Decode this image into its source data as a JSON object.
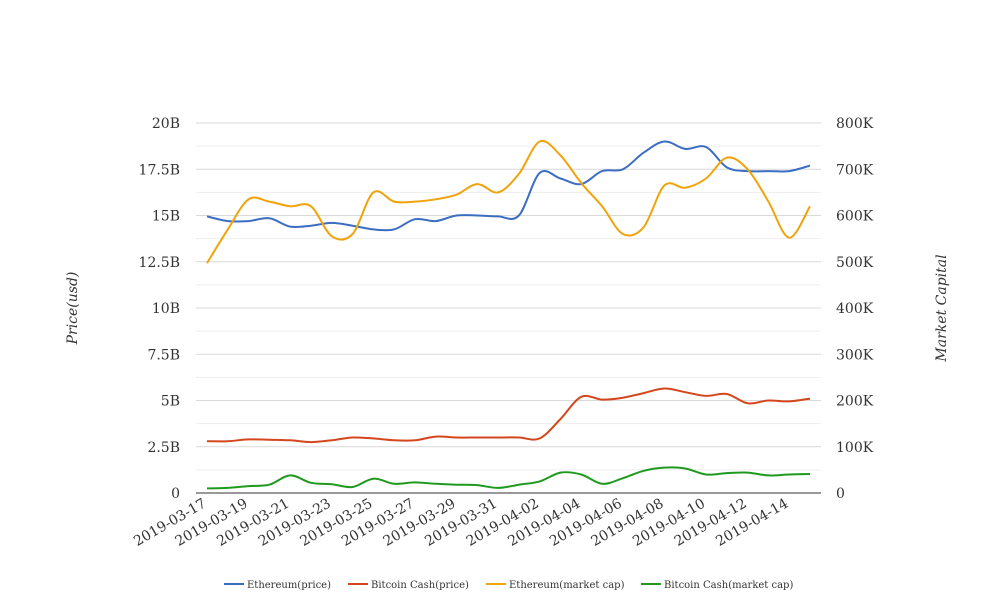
{
  "chart_data": {
    "type": "line",
    "title": "",
    "x": [
      "2019-03-17",
      "2019-03-18",
      "2019-03-19",
      "2019-03-20",
      "2019-03-21",
      "2019-03-22",
      "2019-03-23",
      "2019-03-24",
      "2019-03-25",
      "2019-03-26",
      "2019-03-27",
      "2019-03-28",
      "2019-03-29",
      "2019-03-30",
      "2019-03-31",
      "2019-04-01",
      "2019-04-02",
      "2019-04-03",
      "2019-04-04",
      "2019-04-05",
      "2019-04-06",
      "2019-04-07",
      "2019-04-08",
      "2019-04-09",
      "2019-04-10",
      "2019-04-11",
      "2019-04-12",
      "2019-04-13",
      "2019-04-14",
      "2019-04-15"
    ],
    "x_tick_labels": [
      "2019-03-17",
      "2019-03-19",
      "2019-03-21",
      "2019-03-23",
      "2019-03-25",
      "2019-03-27",
      "2019-03-29",
      "2019-03-31",
      "2019-04-02",
      "2019-04-04",
      "2019-04-06",
      "2019-04-08",
      "2019-04-10",
      "2019-04-12",
      "2019-04-14"
    ],
    "y_left": {
      "label": "Price(usd)",
      "range": [
        0,
        20000000000
      ],
      "ticks": [
        0,
        2500000000,
        5000000000,
        7500000000,
        10000000000,
        12500000000,
        15000000000,
        17500000000,
        20000000000
      ],
      "tick_labels": [
        "0",
        "2.5B",
        "5B",
        "7.5B",
        "10B",
        "12.5B",
        "15B",
        "17.5B",
        "20B"
      ]
    },
    "y_right": {
      "label": "Market Capital",
      "range": [
        0,
        800000
      ],
      "ticks": [
        0,
        100000,
        200000,
        300000,
        400000,
        500000,
        600000,
        700000,
        800000
      ],
      "tick_labels": [
        "0",
        "100K",
        "200K",
        "300K",
        "400K",
        "500K",
        "600K",
        "700K",
        "800K"
      ]
    },
    "grid": true,
    "legend_position": "bottom",
    "series": [
      {
        "name": "Ethereum(price)",
        "axis": "left",
        "color": "#3b6ec2",
        "values": [
          14950000000,
          14700000000,
          14700000000,
          14850000000,
          14400000000,
          14450000000,
          14600000000,
          14450000000,
          14250000000,
          14250000000,
          14800000000,
          14700000000,
          15000000000,
          15000000000,
          14950000000,
          15000000000,
          17300000000,
          17000000000,
          16700000000,
          17400000000,
          17500000000,
          18400000000,
          19000000000,
          18600000000,
          18700000000,
          17600000000,
          17400000000,
          17400000000,
          17400000000,
          17700000000
        ]
      },
      {
        "name": "Bitcoin Cash(price)",
        "axis": "left",
        "color": "#d4461c",
        "values": [
          2800000000,
          2800000000,
          2900000000,
          2880000000,
          2850000000,
          2750000000,
          2850000000,
          3000000000,
          2950000000,
          2850000000,
          2850000000,
          3050000000,
          3000000000,
          3000000000,
          3000000000,
          3000000000,
          2950000000,
          4000000000,
          5200000000,
          5050000000,
          5150000000,
          5400000000,
          5650000000,
          5450000000,
          5250000000,
          5350000000,
          4850000000,
          5000000000,
          4950000000,
          5100000000
        ]
      },
      {
        "name": "Ethereum(market cap)",
        "axis": "right",
        "color": "#f0a30a",
        "values": [
          497000,
          570000,
          635000,
          630000,
          620000,
          620000,
          555000,
          560000,
          650000,
          630000,
          630000,
          635000,
          645000,
          668000,
          650000,
          690000,
          760000,
          730000,
          670000,
          620000,
          560000,
          575000,
          665000,
          660000,
          680000,
          725000,
          700000,
          630000,
          552000,
          620000
        ]
      },
      {
        "name": "Bitcoin Cash(market cap)",
        "axis": "right",
        "color": "#1f9a1f",
        "values": [
          10000,
          11000,
          15000,
          18000,
          38000,
          22000,
          19000,
          13000,
          31000,
          20000,
          23000,
          20000,
          18000,
          17000,
          11000,
          18000,
          25000,
          44000,
          40000,
          20000,
          32000,
          48000,
          55000,
          53000,
          40000,
          43000,
          44000,
          38000,
          40000,
          41000
        ]
      }
    ]
  }
}
